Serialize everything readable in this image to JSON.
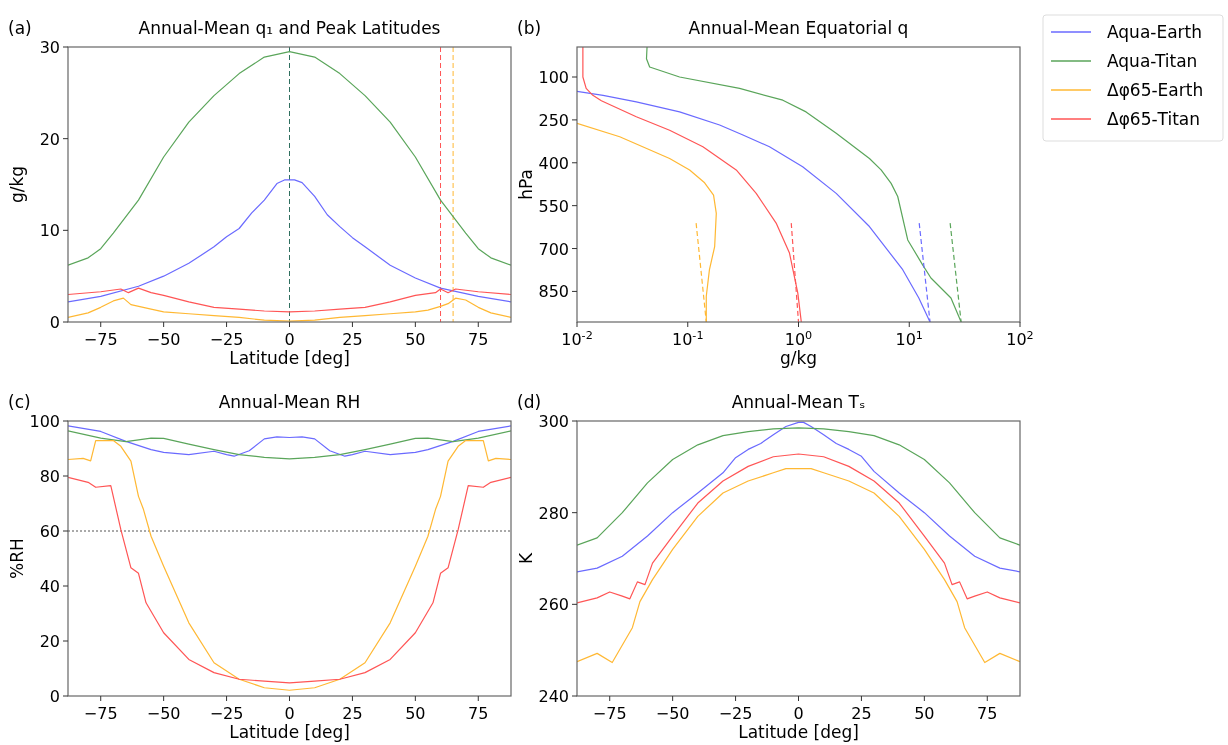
{
  "chart_data": [
    {
      "type": "line",
      "title": "Annual-Mean q₁ and Peak Latitudes",
      "xlabel": "Latitude [deg]",
      "ylabel": "g/kg",
      "annotations": [
        "(a)"
      ],
      "xlim": [
        -88,
        88
      ],
      "ylim": [
        0,
        30
      ],
      "xticks": [
        {
          "value": -75,
          "label": "−75"
        },
        {
          "value": -50,
          "label": "−50"
        },
        {
          "value": -25,
          "label": "−25"
        },
        0,
        25,
        50,
        75
      ],
      "yticks": [
        0,
        10,
        20,
        30
      ],
      "series": [
        {
          "color": "#6a6aff",
          "x": [
            -88,
            -75,
            -60,
            -50,
            -40,
            -30,
            -25,
            -20,
            -15,
            -10,
            -5,
            -2,
            2,
            5,
            10,
            15,
            20,
            25,
            30,
            40,
            50,
            60,
            75,
            88
          ],
          "values": [
            2.2,
            2.8,
            3.9,
            5.0,
            6.4,
            8.2,
            9.3,
            10.2,
            11.9,
            13.3,
            15.1,
            15.5,
            15.5,
            15.2,
            13.7,
            11.7,
            10.4,
            9.2,
            8.2,
            6.2,
            4.8,
            3.7,
            2.8,
            2.2
          ]
        },
        {
          "color": "#5aa55a",
          "x": [
            -88,
            -80,
            -75,
            -70,
            -60,
            -50,
            -40,
            -30,
            -20,
            -10,
            0,
            10,
            20,
            30,
            40,
            50,
            60,
            70,
            75,
            80,
            88
          ],
          "values": [
            6.2,
            7.0,
            8.0,
            9.7,
            13.3,
            18.0,
            21.8,
            24.7,
            27.1,
            28.9,
            29.5,
            28.9,
            27.1,
            24.7,
            21.8,
            18.0,
            13.3,
            9.7,
            8.0,
            7.0,
            6.2
          ]
        },
        {
          "color": "#ffb833",
          "x": [
            -88,
            -80,
            -75,
            -70,
            -66,
            -63,
            -55,
            -50,
            -40,
            -30,
            -20,
            -10,
            0,
            10,
            20,
            30,
            40,
            50,
            55,
            60,
            63,
            66,
            70,
            75,
            80,
            88
          ],
          "values": [
            0.5,
            1.0,
            1.6,
            2.3,
            2.6,
            1.9,
            1.4,
            1.1,
            0.9,
            0.7,
            0.5,
            0.2,
            0.1,
            0.2,
            0.5,
            0.7,
            0.9,
            1.1,
            1.3,
            1.7,
            2.0,
            2.6,
            2.4,
            1.6,
            1.0,
            0.5
          ]
        },
        {
          "color": "#ff5555",
          "x": [
            -88,
            -75,
            -67,
            -64,
            -60,
            -55,
            -50,
            -40,
            -30,
            -20,
            -10,
            0,
            10,
            20,
            30,
            40,
            50,
            58,
            60,
            63,
            66,
            75,
            88
          ],
          "values": [
            3.0,
            3.3,
            3.6,
            3.2,
            3.7,
            3.2,
            2.9,
            2.2,
            1.6,
            1.4,
            1.2,
            1.1,
            1.2,
            1.4,
            1.6,
            2.2,
            2.9,
            3.2,
            3.6,
            3.2,
            3.6,
            3.3,
            3.0
          ]
        }
      ],
      "ref_lines": [
        {
          "axis": "x",
          "value": 0,
          "color": "#2f6f5f",
          "line_style": "dashed"
        },
        {
          "axis": "x",
          "value": 60,
          "color": "#ff5555",
          "line_style": "dashed"
        },
        {
          "axis": "x",
          "value": 65,
          "color": "#ffb833",
          "line_style": "dashed"
        }
      ]
    },
    {
      "type": "line",
      "title": "Annual-Mean Equatorial q",
      "xlabel": "g/kg",
      "ylabel": "hPa",
      "annotations": [
        "(b)"
      ],
      "log": "x",
      "legend": "right",
      "xlim": [
        0.01,
        100
      ],
      "ylim": [
        957,
        -5
      ],
      "xticks": [
        {
          "value": 0.01,
          "label": "10$^{-2}$"
        },
        {
          "value": 0.1,
          "label": "10$^{-1}$"
        },
        {
          "value": 1,
          "label": "10$^{0}$"
        },
        {
          "value": 10,
          "label": "10$^{1}$"
        },
        {
          "value": 100,
          "label": "10$^{2}$"
        }
      ],
      "yticks": [
        100,
        250,
        400,
        550,
        700,
        850
      ],
      "series": [
        {
          "name": "Aqua-Earth",
          "color": "#6a6aff",
          "x": [
            0.01,
            0.0172,
            0.0343,
            0.0844,
            0.194,
            0.315,
            0.547,
            1.09,
            2.19,
            4.37,
            8.73,
            12.2,
            15.4
          ],
          "values": [
            150,
            164,
            187,
            222,
            268,
            303,
            344,
            414,
            507,
            623,
            774,
            873,
            957
          ]
        },
        {
          "name": "Aqua-Titan",
          "color": "#5aa55a",
          "x": [
            0.0429,
            0.0424,
            0.0453,
            0.0844,
            0.294,
            0.722,
            1.17,
            2.19,
            4.37,
            5.57,
            6.86,
            7.87,
            9.69,
            13.2,
            15.7,
            23.8,
            29.4
          ],
          "values": [
            -5,
            36,
            65,
            100,
            140,
            181,
            222,
            297,
            385,
            425,
            472,
            518,
            670,
            757,
            803,
            873,
            957
          ]
        },
        {
          "name": "Δφ65-Earth",
          "color": "#ffb833",
          "x": [
            0.01,
            0.0243,
            0.0686,
            0.104,
            0.142,
            0.171,
            0.181,
            0.175,
            0.157,
            0.147,
            0.147
          ],
          "values": [
            262,
            309,
            385,
            425,
            470,
            513,
            577,
            693,
            774,
            867,
            957
          ]
        },
        {
          "name": "Δφ65-Titan",
          "color": "#ff5555",
          "x": [
            0.0113,
            0.0113,
            0.0121,
            0.0139,
            0.0166,
            0.0343,
            0.0686,
            0.137,
            0.274,
            0.415,
            0.628,
            0.829,
            0.986,
            1.06
          ],
          "values": [
            -5,
            100,
            140,
            164,
            183,
            239,
            286,
            344,
            425,
            507,
            611,
            716,
            856,
            957
          ]
        },
        {
          "type": "line",
          "line_style": "dashed",
          "color": "#6a6aff",
          "x": [
            12.3,
            15.4
          ],
          "values": [
            611,
            957
          ]
        },
        {
          "type": "line",
          "line_style": "dashed",
          "color": "#5aa55a",
          "x": [
            23.4,
            29.4
          ],
          "values": [
            611,
            957
          ]
        },
        {
          "type": "line",
          "line_style": "dashed",
          "color": "#ffb833",
          "x": [
            0.119,
            0.147
          ],
          "values": [
            611,
            957
          ]
        },
        {
          "type": "line",
          "line_style": "dashed",
          "color": "#ff5555",
          "x": [
            0.86,
            1.0
          ],
          "values": [
            611,
            957
          ]
        }
      ]
    },
    {
      "type": "line",
      "title": "Annual-Mean RH",
      "xlabel": "Latitude [deg]",
      "ylabel": "%RH",
      "annotations": [
        "(c)"
      ],
      "xlim": [
        -88,
        88
      ],
      "ylim": [
        0,
        100
      ],
      "xticks": [
        {
          "value": -75,
          "label": "−75"
        },
        {
          "value": -50,
          "label": "−50"
        },
        {
          "value": -25,
          "label": "−25"
        },
        0,
        25,
        50,
        75
      ],
      "yticks": [
        0,
        20,
        40,
        60,
        80,
        100
      ],
      "series": [
        {
          "color": "#6a6aff",
          "x": [
            -88,
            -75,
            -65,
            -55,
            -50,
            -40,
            -30,
            -25,
            -22,
            -16,
            -10,
            -5,
            0,
            5,
            10,
            16,
            22,
            25,
            30,
            40,
            50,
            55,
            65,
            75,
            88
          ],
          "values": [
            98.2,
            96.2,
            92.6,
            89.6,
            88.6,
            87.8,
            89.0,
            87.8,
            87.2,
            89.2,
            93.5,
            94.2,
            94.0,
            94.2,
            93.5,
            89.2,
            87.2,
            87.8,
            89.0,
            87.8,
            88.6,
            89.6,
            92.6,
            96.2,
            98.2
          ]
        },
        {
          "color": "#5aa55a",
          "x": [
            -88,
            -75,
            -65,
            -55,
            -50,
            -40,
            -30,
            -20,
            -10,
            0,
            10,
            20,
            30,
            40,
            50,
            55,
            65,
            75,
            88
          ],
          "values": [
            96.4,
            93.8,
            92.5,
            93.8,
            93.7,
            91.6,
            89.6,
            87.8,
            86.8,
            86.2,
            86.8,
            87.8,
            89.6,
            91.6,
            93.7,
            93.8,
            92.5,
            93.8,
            96.4
          ]
        },
        {
          "color": "#ffb833",
          "x": [
            -88,
            -82,
            -79,
            -77,
            -70,
            -67,
            -63,
            -60,
            -58,
            -55,
            -50,
            -40,
            -30,
            -20,
            -10,
            0,
            10,
            20,
            30,
            40,
            50,
            55,
            58,
            60,
            63,
            67,
            70,
            77,
            79,
            82,
            88
          ],
          "values": [
            86.0,
            86.4,
            85.5,
            92.9,
            92.9,
            90.8,
            85.4,
            72.6,
            67.8,
            58.1,
            47.2,
            26.6,
            12.1,
            6.1,
            3.0,
            2.1,
            3.0,
            6.1,
            12.1,
            26.6,
            47.2,
            58.1,
            67.8,
            72.6,
            85.4,
            90.8,
            92.9,
            92.9,
            85.5,
            86.4,
            86.0
          ]
        },
        {
          "color": "#ff5555",
          "x": [
            -88,
            -80,
            -77,
            -71,
            -67,
            -63,
            -60,
            -57,
            -50,
            -40,
            -30,
            -20,
            -10,
            0,
            10,
            20,
            30,
            40,
            50,
            57,
            60,
            63,
            67,
            71,
            77,
            80,
            88
          ],
          "values": [
            79.5,
            77.7,
            75.9,
            76.5,
            60.5,
            46.6,
            44.6,
            33.9,
            23.0,
            13.3,
            8.5,
            6.1,
            5.4,
            4.8,
            5.4,
            6.1,
            8.5,
            13.3,
            23.0,
            33.9,
            44.6,
            46.6,
            60.5,
            76.5,
            75.9,
            77.7,
            79.5
          ]
        }
      ],
      "ref_lines": [
        {
          "axis": "y",
          "value": 60,
          "color": "#555555",
          "line_style": "dotted"
        }
      ]
    },
    {
      "type": "line",
      "title": "Annual-Mean Tₛ",
      "xlabel": "Latitude [deg]",
      "ylabel": "K",
      "annotations": [
        "(d)"
      ],
      "xlim": [
        -88,
        88
      ],
      "ylim": [
        240,
        300
      ],
      "xticks": [
        {
          "value": -75,
          "label": "−75"
        },
        {
          "value": -50,
          "label": "−50"
        },
        {
          "value": -25,
          "label": "−25"
        },
        0,
        25,
        50,
        75
      ],
      "yticks": [
        240,
        260,
        280,
        300
      ],
      "series": [
        {
          "color": "#6a6aff",
          "x": [
            -88,
            -80,
            -70,
            -60,
            -50,
            -40,
            -30,
            -25,
            -20,
            -15,
            -10,
            -5,
            0,
            2,
            5,
            10,
            15,
            20,
            25,
            30,
            40,
            50,
            60,
            70,
            80,
            88
          ],
          "values": [
            267.1,
            267.9,
            270.5,
            274.9,
            280.0,
            284.3,
            288.7,
            292.0,
            293.8,
            295.1,
            297.0,
            298.8,
            299.7,
            299.7,
            298.8,
            297.0,
            295.1,
            293.8,
            292.3,
            289.0,
            284.3,
            280.0,
            274.9,
            270.5,
            267.9,
            267.1
          ]
        },
        {
          "color": "#5aa55a",
          "x": [
            -88,
            -80,
            -70,
            -60,
            -50,
            -40,
            -30,
            -20,
            -10,
            0,
            10,
            20,
            30,
            40,
            50,
            60,
            70,
            80,
            88
          ],
          "values": [
            272.9,
            274.5,
            280.0,
            286.5,
            291.6,
            294.8,
            296.8,
            297.7,
            298.3,
            298.5,
            298.3,
            297.7,
            296.8,
            294.8,
            291.6,
            286.5,
            280.0,
            274.5,
            272.9
          ]
        },
        {
          "color": "#ffb833",
          "x": [
            -88,
            -80,
            -74,
            -66,
            -63,
            -58,
            -50,
            -40,
            -30,
            -20,
            -10,
            -5,
            0,
            5,
            10,
            20,
            30,
            40,
            50,
            58,
            63,
            66,
            74,
            80,
            88
          ],
          "values": [
            247.5,
            249.3,
            247.3,
            254.9,
            260.6,
            265.4,
            272.0,
            279.2,
            284.3,
            286.9,
            288.7,
            289.6,
            289.6,
            289.6,
            288.7,
            286.9,
            284.3,
            279.2,
            272.0,
            265.4,
            260.6,
            254.9,
            247.3,
            249.3,
            247.5
          ]
        },
        {
          "color": "#ff5555",
          "x": [
            -88,
            -80,
            -75,
            -70,
            -67,
            -64,
            -61,
            -58,
            -50,
            -40,
            -30,
            -20,
            -10,
            0,
            10,
            20,
            30,
            40,
            50,
            58,
            61,
            64,
            67,
            70,
            75,
            80,
            88
          ],
          "values": [
            260.3,
            261.4,
            262.7,
            261.8,
            261.2,
            264.9,
            264.3,
            269.0,
            274.9,
            282.1,
            286.9,
            290.1,
            292.2,
            292.8,
            292.2,
            290.1,
            286.9,
            282.1,
            274.9,
            269.0,
            264.3,
            264.9,
            261.2,
            261.8,
            262.7,
            261.4,
            260.3
          ]
        }
      ]
    }
  ]
}
